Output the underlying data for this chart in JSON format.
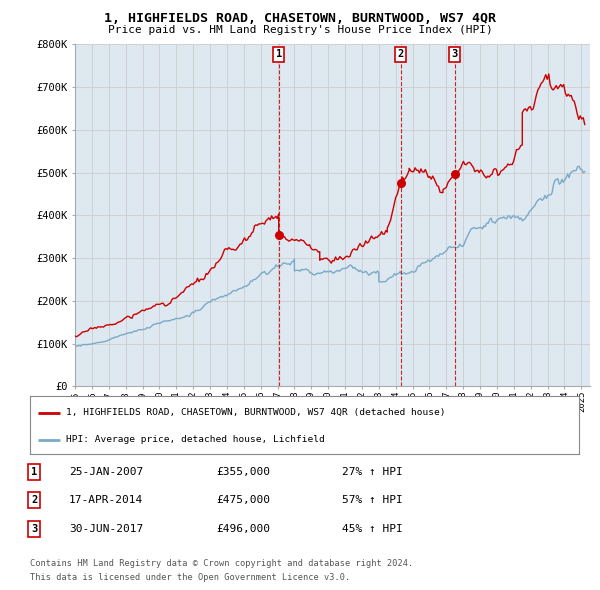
{
  "title": "1, HIGHFIELDS ROAD, CHASETOWN, BURNTWOOD, WS7 4QR",
  "subtitle": "Price paid vs. HM Land Registry's House Price Index (HPI)",
  "red_line_color": "#cc0000",
  "blue_line_color": "#7aaac8",
  "sale_marker_color": "#cc0000",
  "grid_color": "#cccccc",
  "bg_color": "#dde8f0",
  "outer_bg": "#ffffff",
  "ylim": [
    0,
    800000
  ],
  "yticks": [
    0,
    100000,
    200000,
    300000,
    400000,
    500000,
    600000,
    700000,
    800000
  ],
  "ytick_labels": [
    "£0",
    "£100K",
    "£200K",
    "£300K",
    "£400K",
    "£500K",
    "£600K",
    "£700K",
    "£800K"
  ],
  "xmin": 1995.0,
  "xmax": 2025.5,
  "sales": [
    {
      "num": 1,
      "date_str": "25-JAN-2007",
      "date_x": 2007.07,
      "price": 355000,
      "hpi_pct": "27%",
      "arrow": "↑"
    },
    {
      "num": 2,
      "date_str": "17-APR-2014",
      "date_x": 2014.3,
      "price": 475000,
      "hpi_pct": "57%",
      "arrow": "↑"
    },
    {
      "num": 3,
      "date_str": "30-JUN-2017",
      "date_x": 2017.5,
      "price": 496000,
      "hpi_pct": "45%",
      "arrow": "↑"
    }
  ],
  "legend_label_red": "1, HIGHFIELDS ROAD, CHASETOWN, BURNTWOOD, WS7 4QR (detached house)",
  "legend_label_blue": "HPI: Average price, detached house, Lichfield",
  "footer1": "Contains HM Land Registry data © Crown copyright and database right 2024.",
  "footer2": "This data is licensed under the Open Government Licence v3.0."
}
